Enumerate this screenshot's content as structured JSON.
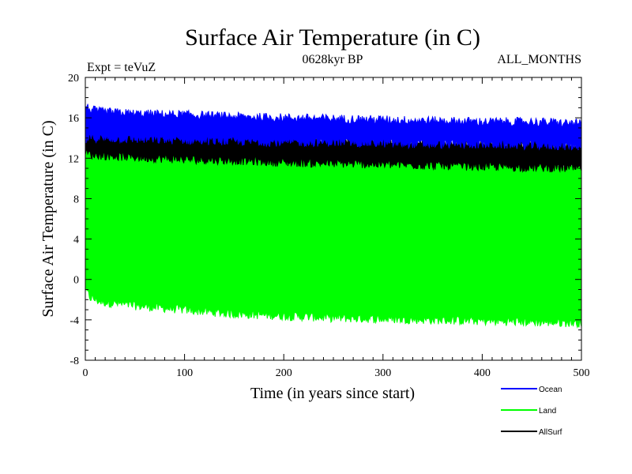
{
  "chart_data": {
    "type": "area",
    "title": "Surface Air Temperature (in C)",
    "subtitle_left": "Expt = teVuZ",
    "subtitle_center": "0628kyr BP",
    "subtitle_right": "ALL_MONTHS",
    "xlabel": "Time (in years since start)",
    "ylabel": "Surface Air Temperature (in C)",
    "xlim": [
      0,
      500
    ],
    "ylim": [
      -8,
      20
    ],
    "x_ticks": [
      0,
      100,
      200,
      300,
      400,
      500
    ],
    "y_ticks": [
      -8,
      -4,
      0,
      4,
      8,
      12,
      16,
      20
    ],
    "grid": false,
    "legend_position": "bottom-right",
    "series": [
      {
        "name": "Ocean",
        "color": "#0000ff",
        "band_x": [
          0,
          5,
          15,
          50,
          100,
          150,
          200,
          250,
          300,
          350,
          400,
          450,
          500
        ],
        "upper": [
          17.2,
          16.8,
          16.6,
          16.4,
          16.3,
          16.1,
          16.0,
          15.9,
          15.8,
          15.7,
          15.6,
          15.6,
          15.4
        ],
        "lower": [
          13.8,
          14.0,
          14.0,
          13.9,
          13.8,
          13.7,
          13.6,
          13.6,
          13.5,
          13.4,
          13.4,
          13.3,
          13.2
        ]
      },
      {
        "name": "Land",
        "color": "#00ff00",
        "band_x": [
          0,
          5,
          15,
          50,
          100,
          150,
          200,
          250,
          300,
          350,
          400,
          450,
          500
        ],
        "upper": [
          14.0,
          13.2,
          13.0,
          12.8,
          12.5,
          12.3,
          12.2,
          12.0,
          11.9,
          11.7,
          11.6,
          11.5,
          11.4
        ],
        "lower": [
          -1.0,
          -1.8,
          -2.2,
          -2.6,
          -3.0,
          -3.4,
          -3.6,
          -3.8,
          -3.9,
          -4.0,
          -4.1,
          -4.2,
          -4.3
        ]
      },
      {
        "name": "AllSurf",
        "color": "#000000",
        "band_x": [
          0,
          5,
          15,
          50,
          100,
          150,
          200,
          250,
          300,
          350,
          400,
          450,
          500
        ],
        "upper": [
          15.6,
          15.2,
          15.0,
          14.8,
          14.5,
          14.2,
          14.0,
          13.9,
          13.8,
          13.7,
          13.5,
          13.4,
          13.3
        ],
        "lower": [
          12.6,
          12.4,
          12.3,
          12.1,
          11.9,
          11.8,
          11.6,
          11.5,
          11.4,
          11.3,
          11.2,
          11.1,
          11.0
        ]
      }
    ]
  }
}
